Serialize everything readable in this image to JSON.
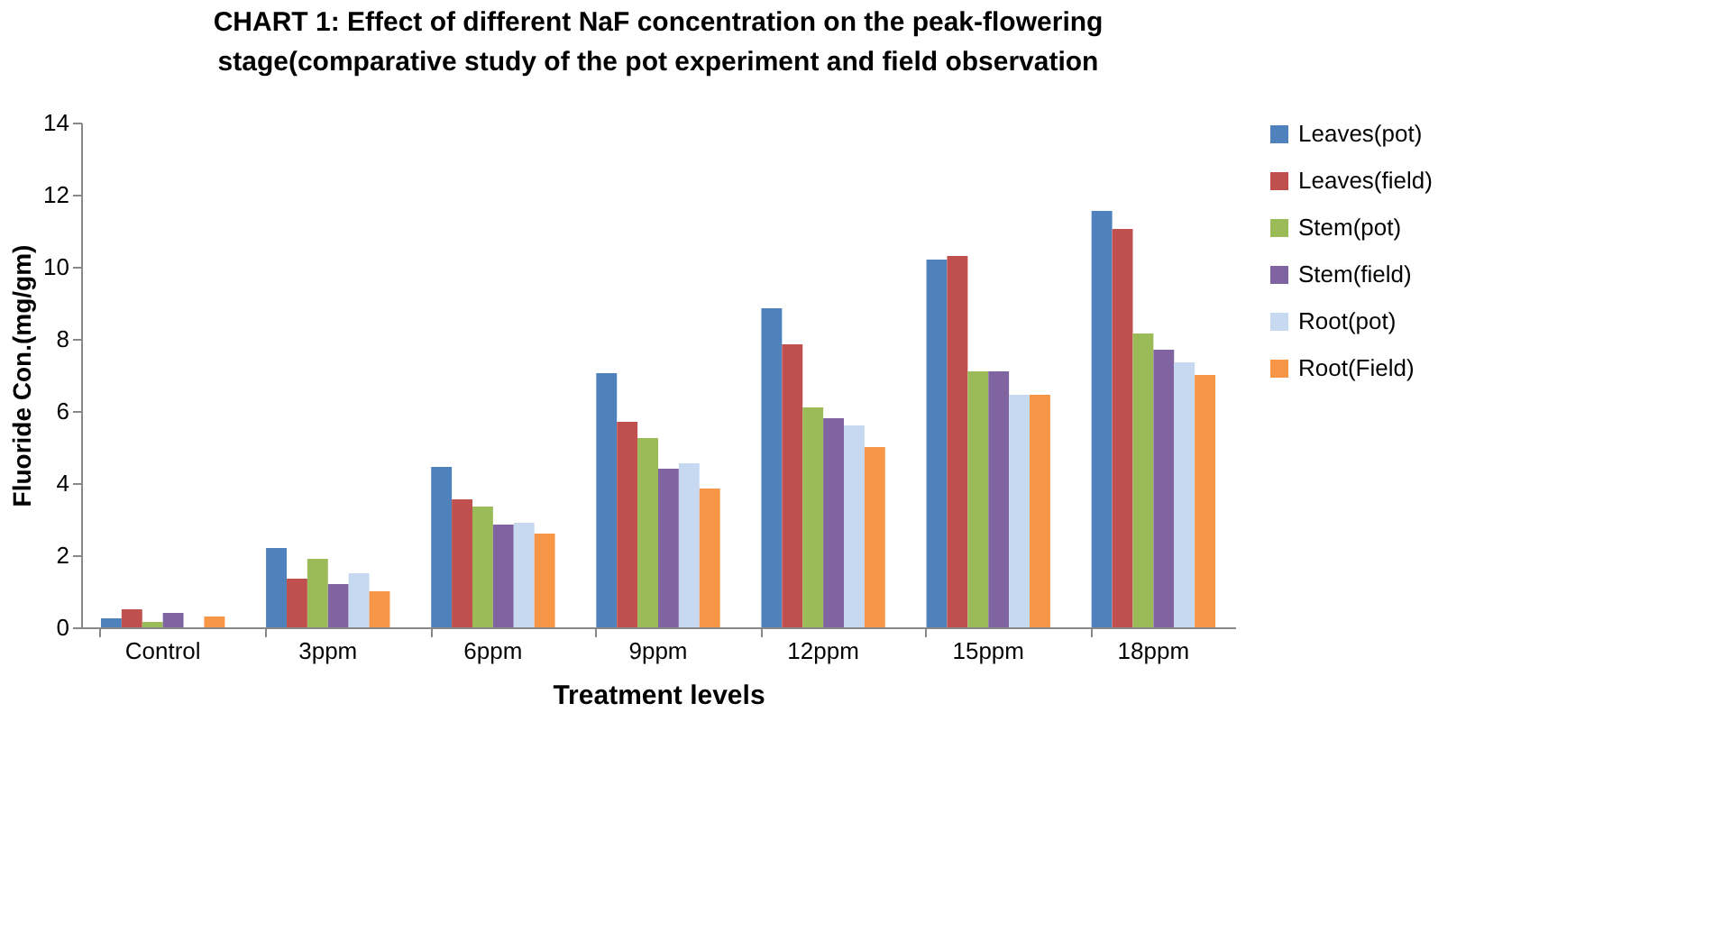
{
  "chart_data": {
    "type": "bar",
    "title": "CHART 1: Effect of different NaF concentration on the peak-flowering stage(comparative study of the pot experiment and field observation",
    "xlabel": "Treatment levels",
    "ylabel": "Fluoride Con.(mg/gm)",
    "categories": [
      "Control",
      "3ppm",
      "6ppm",
      "9ppm",
      "12ppm",
      "15ppm",
      "18ppm"
    ],
    "series": [
      {
        "name": "Leaves(pot)",
        "color": "#4f81bd",
        "values": [
          0.25,
          2.2,
          4.45,
          7.05,
          8.85,
          10.2,
          11.55
        ]
      },
      {
        "name": "Leaves(field)",
        "color": "#c0504d",
        "values": [
          0.5,
          1.35,
          3.55,
          5.7,
          7.85,
          10.3,
          11.05
        ]
      },
      {
        "name": "Stem(pot)",
        "color": "#9bbb59",
        "values": [
          0.15,
          1.9,
          3.35,
          5.25,
          6.1,
          7.1,
          8.15
        ]
      },
      {
        "name": "Stem(field)",
        "color": "#8064a2",
        "values": [
          0.4,
          1.2,
          2.85,
          4.4,
          5.8,
          7.1,
          7.7
        ]
      },
      {
        "name": "Root(pot)",
        "color": "#c6d9f1",
        "values": [
          0,
          1.5,
          2.9,
          4.55,
          5.6,
          6.45,
          7.35
        ]
      },
      {
        "name": "Root(Field)",
        "color": "#f79646",
        "values": [
          0.3,
          1.0,
          2.6,
          3.85,
          5.0,
          6.45,
          7.0
        ]
      }
    ],
    "ylim": [
      0,
      14
    ],
    "yticks": [
      0,
      2,
      4,
      6,
      8,
      10,
      12,
      14
    ],
    "grid": false,
    "legend": "right"
  }
}
